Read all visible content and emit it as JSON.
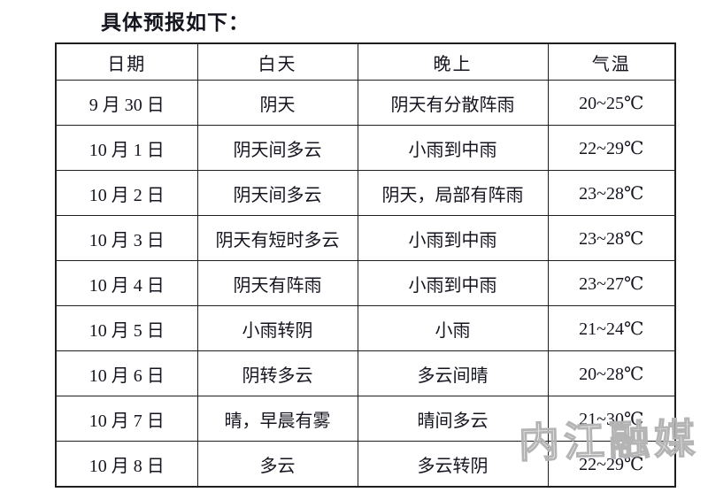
{
  "page": {
    "title": "具体预报如下："
  },
  "table": {
    "headers": [
      "日期",
      "白天",
      "晚上",
      "气温"
    ],
    "rows": [
      [
        "9 月 30 日",
        "阴天",
        "阴天有分散阵雨",
        "20~25℃"
      ],
      [
        "10 月 1 日",
        "阴天间多云",
        "小雨到中雨",
        "22~29℃"
      ],
      [
        "10 月 2 日",
        "阴天间多云",
        "阴天，局部有阵雨",
        "23~28℃"
      ],
      [
        "10 月 3 日",
        "阴天有短时多云",
        "小雨到中雨",
        "23~28℃"
      ],
      [
        "10 月 4 日",
        "阴天有阵雨",
        "小雨到中雨",
        "23~27℃"
      ],
      [
        "10 月 5 日",
        "小雨转阴",
        "小雨",
        "21~24℃"
      ],
      [
        "10 月 6 日",
        "阴转多云",
        "多云间晴",
        "20~28℃"
      ],
      [
        "10 月 7 日",
        "晴，早晨有雾",
        "晴间多云",
        "21~30℃"
      ],
      [
        "10 月 8 日",
        "多云",
        "多云转阴",
        "22~29℃"
      ]
    ]
  },
  "watermark": {
    "text": "内江融媒"
  },
  "colors": {
    "background": "#ffffff",
    "text": "#14141f",
    "border": "#1f1f1f",
    "watermark_stroke": "#b4b4b4"
  }
}
